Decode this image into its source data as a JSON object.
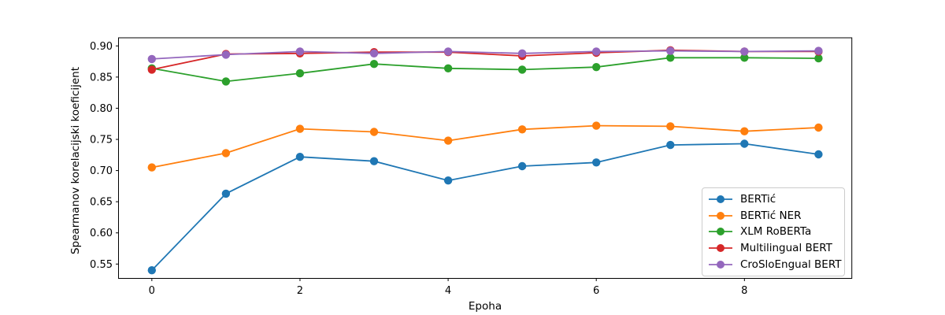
{
  "figure": {
    "xlabel": "Epoha",
    "ylabel": "Spearmanov korelacijski koeficijent"
  },
  "chart_data": {
    "type": "line",
    "title": "",
    "xlabel": "Epoha",
    "ylabel": "Spearmanov korelacijski koeficijent",
    "x": [
      0,
      1,
      2,
      3,
      4,
      5,
      6,
      7,
      8,
      9
    ],
    "xlim": [
      -0.45,
      9.45
    ],
    "ylim": [
      0.527,
      0.913
    ],
    "xticks": [
      0,
      2,
      4,
      6,
      8
    ],
    "yticks": [
      0.55,
      0.6,
      0.65,
      0.7,
      0.75,
      0.8,
      0.85,
      0.9
    ],
    "grid": false,
    "marker": "circle",
    "legend_position": "lower-right-inside",
    "series": [
      {
        "name": "BERTić",
        "color": "#1f77b4",
        "values": [
          0.54,
          0.663,
          0.722,
          0.715,
          0.684,
          0.707,
          0.713,
          0.741,
          0.743,
          0.726
        ]
      },
      {
        "name": "BERTić NER",
        "color": "#ff7f0e",
        "values": [
          0.705,
          0.728,
          0.767,
          0.762,
          0.748,
          0.766,
          0.772,
          0.771,
          0.763,
          0.769
        ]
      },
      {
        "name": "XLM RoBERTa",
        "color": "#2ca02c",
        "values": [
          0.864,
          0.843,
          0.856,
          0.871,
          0.864,
          0.862,
          0.866,
          0.881,
          0.881,
          0.88
        ]
      },
      {
        "name": "Multilingual BERT",
        "color": "#d62728",
        "values": [
          0.862,
          0.887,
          0.888,
          0.89,
          0.89,
          0.884,
          0.889,
          0.893,
          0.891,
          0.891
        ]
      },
      {
        "name": "CroSloEngual BERT",
        "color": "#9467bd",
        "values": [
          0.879,
          0.886,
          0.891,
          0.888,
          0.891,
          0.888,
          0.891,
          0.892,
          0.891,
          0.892
        ]
      }
    ]
  }
}
